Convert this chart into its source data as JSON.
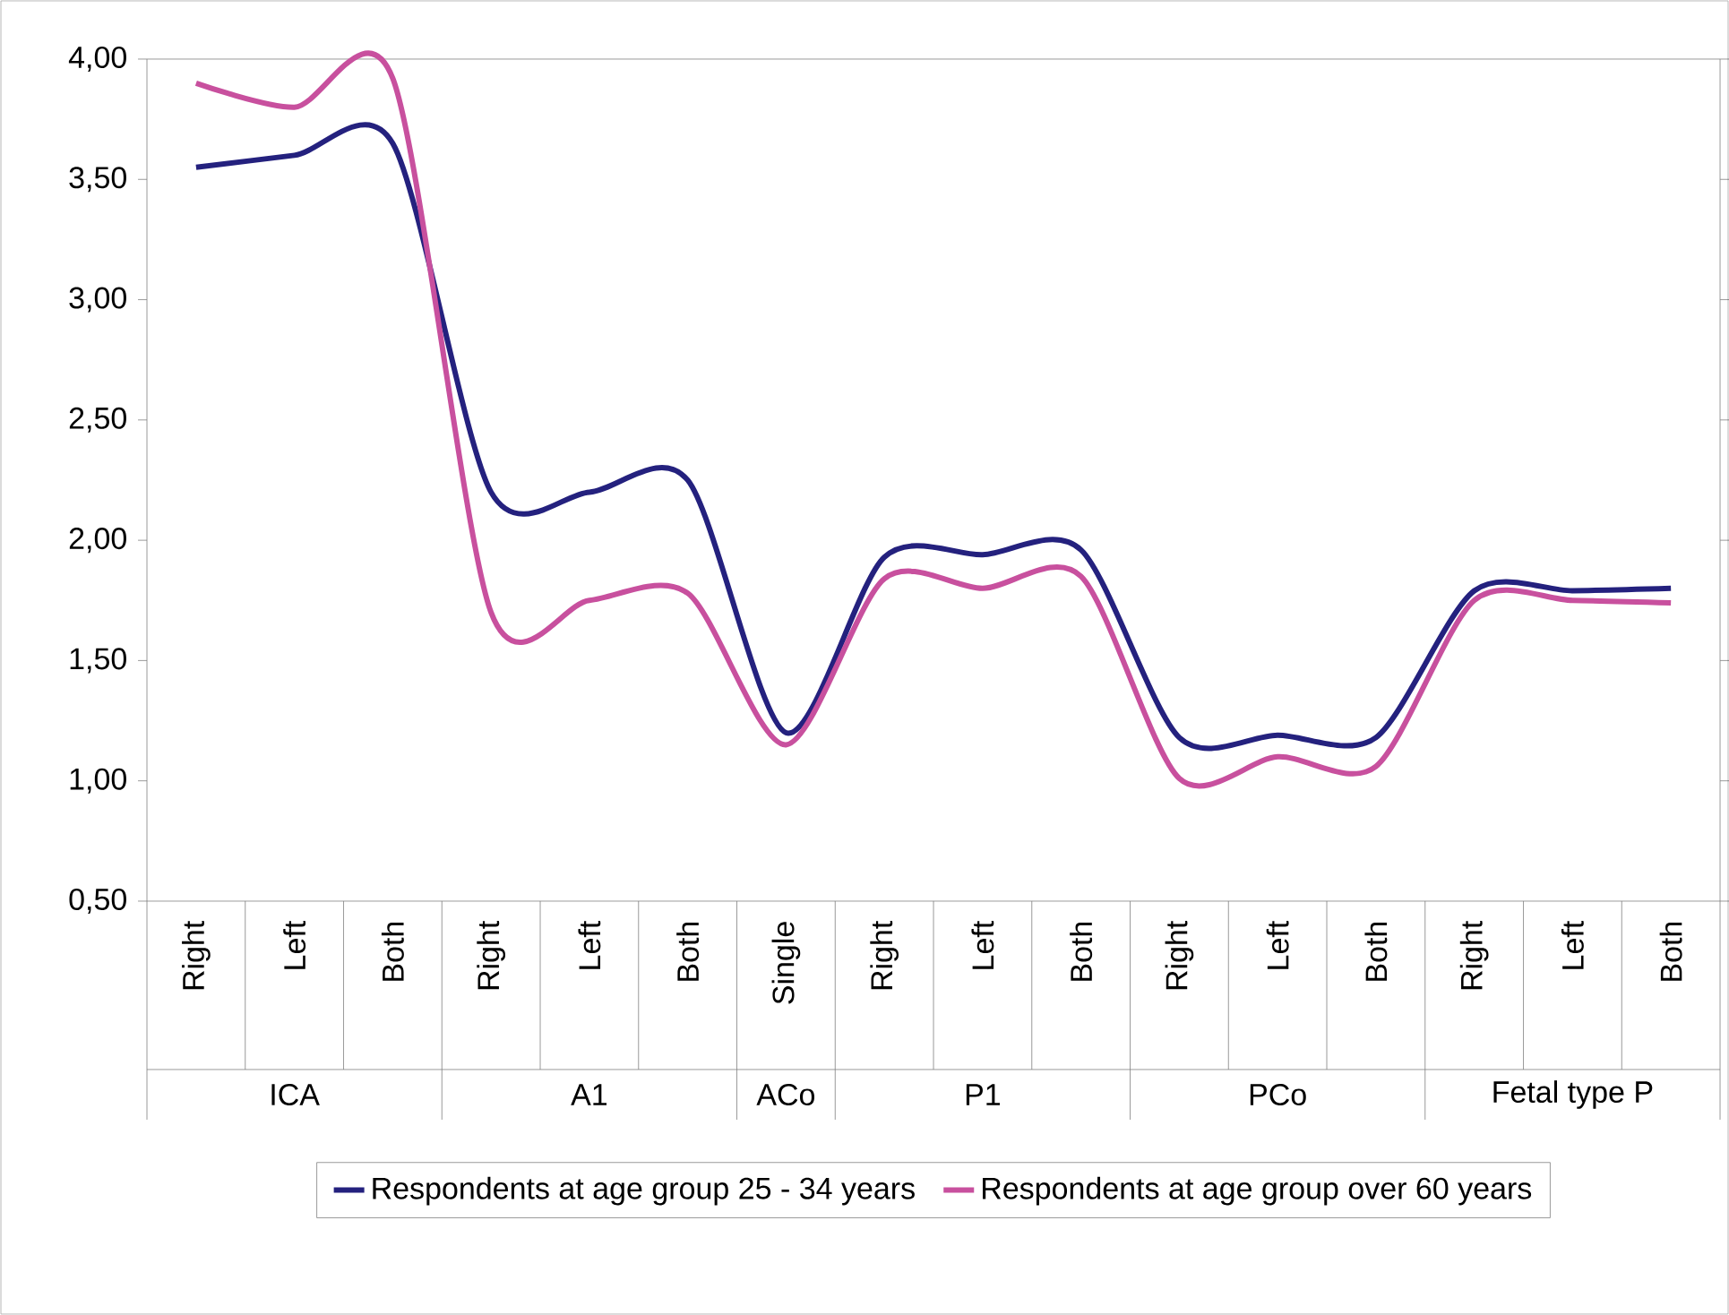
{
  "chart_data": {
    "type": "line",
    "categories": [
      "Right",
      "Left",
      "Both",
      "Right",
      "Left",
      "Both",
      "Single",
      "Right",
      "Left",
      "Both",
      "Right",
      "Left",
      "Both",
      "Right",
      "Left",
      "Both"
    ],
    "series": [
      {
        "name": "Respondents at age group 25 - 34 years",
        "color": "#24217e",
        "values": [
          3.55,
          3.6,
          3.65,
          2.2,
          2.2,
          2.25,
          1.2,
          1.93,
          1.94,
          1.96,
          1.18,
          1.19,
          1.18,
          1.79,
          1.79,
          1.8
        ]
      },
      {
        "name": "Respondents at age group over 60 years",
        "color": "#c8509e",
        "values": [
          3.9,
          3.8,
          3.92,
          1.7,
          1.75,
          1.78,
          1.15,
          1.84,
          1.8,
          1.85,
          1.01,
          1.1,
          1.06,
          1.75,
          1.75,
          1.74
        ]
      }
    ],
    "annotations": [
      "ICA",
      "A1",
      "ACo",
      "P1",
      "PCo",
      "Fetal type P"
    ],
    "ylim": [
      0.5,
      4
    ],
    "yticks": [
      {
        "value": 0.5,
        "label": "0,50"
      },
      {
        "value": 1,
        "label": "1,00"
      },
      {
        "value": 1.5,
        "label": "1,50"
      },
      {
        "value": 2,
        "label": "2,00"
      },
      {
        "value": 2.5,
        "label": "2,50"
      },
      {
        "value": 3,
        "label": "3,00"
      },
      {
        "value": 3.5,
        "label": "3,50"
      },
      {
        "value": 4,
        "label": "4,00"
      }
    ],
    "legend": "bottom",
    "marker": "none",
    "line_style": "solid",
    "grid": false
  }
}
